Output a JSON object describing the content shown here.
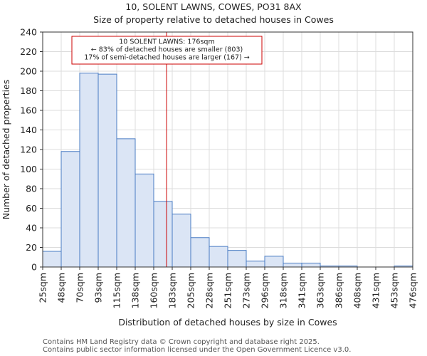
{
  "chart_data": {
    "type": "bar",
    "title": "10, SOLENT LAWNS, COWES, PO31 8AX",
    "subtitle": "Size of property relative to detached houses in Cowes",
    "xlabel": "Distribution of detached houses by size in Cowes",
    "ylabel": "Number of detached properties",
    "ylim": [
      0,
      240
    ],
    "yticks": [
      0,
      20,
      40,
      60,
      80,
      100,
      120,
      140,
      160,
      180,
      200,
      220,
      240
    ],
    "grid": true,
    "bin_edges": [
      25,
      48,
      70,
      93,
      115,
      138,
      160,
      183,
      205,
      228,
      251,
      273,
      296,
      318,
      341,
      363,
      386,
      408,
      431,
      453,
      476
    ],
    "xtick_labels": [
      "25sqm",
      "48sqm",
      "70sqm",
      "93sqm",
      "115sqm",
      "138sqm",
      "160sqm",
      "183sqm",
      "205sqm",
      "228sqm",
      "251sqm",
      "273sqm",
      "296sqm",
      "318sqm",
      "341sqm",
      "363sqm",
      "386sqm",
      "408sqm",
      "431sqm",
      "453sqm",
      "476sqm"
    ],
    "values": [
      16,
      118,
      198,
      197,
      131,
      95,
      67,
      54,
      30,
      21,
      17,
      6,
      11,
      4,
      4,
      1,
      1,
      0,
      0,
      1
    ],
    "marker": {
      "value": 176,
      "color": "#cc0000"
    },
    "annotation": {
      "lines": [
        "10 SOLENT LAWNS: 176sqm",
        "← 83% of detached houses are smaller (803)",
        "17% of semi-detached houses are larger (167) →"
      ]
    },
    "bar_color": "#dbe5f5",
    "bar_edge_color": "#4a7cc3"
  },
  "footer": {
    "line1": "Contains HM Land Registry data © Crown copyright and database right 2025.",
    "line2": "Contains public sector information licensed under the Open Government Licence v3.0."
  }
}
